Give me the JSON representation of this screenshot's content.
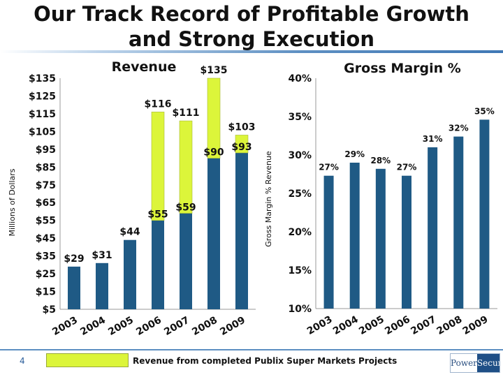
{
  "slide": {
    "title_line1": "Our Track Record of Profitable Growth",
    "title_line2": "and Strong Execution",
    "page_number": "4",
    "legend_label": "Revenue from completed Publix Super Markets Projects",
    "logo_left": "Power",
    "logo_right": "Secure"
  },
  "colors": {
    "base": "#1f5a85",
    "publix": "#dcf53a",
    "publix_border": "#a5b83a"
  },
  "chart_data": [
    {
      "type": "bar",
      "stacked": true,
      "title": "Revenue",
      "ylabel": "Millions of Dollars",
      "categories": [
        "2003",
        "2004",
        "2005",
        "2006",
        "2007",
        "2008",
        "2009"
      ],
      "series": [
        {
          "values": [
            29,
            31,
            44,
            55,
            59,
            90,
            93
          ]
        },
        {
          "name": "Revenue from completed Publix Super Markets Projects",
          "values": [
            0,
            0,
            0,
            61,
            52,
            45,
            10
          ]
        }
      ],
      "totals": [
        29,
        31,
        44,
        116,
        111,
        135,
        103
      ],
      "labels_total": [
        "$29",
        "$31",
        "$44",
        "$116",
        "$111",
        "$135",
        "$103"
      ],
      "labels_base": [
        "",
        "",
        "",
        "$55",
        "$59",
        "$90",
        "$93"
      ],
      "ylim": [
        5,
        135
      ],
      "yticks": [
        "$5",
        "$15",
        "$25",
        "$35",
        "$45",
        "$55",
        "$65",
        "$75",
        "$85",
        "$95",
        "$105",
        "$115",
        "$125",
        "$135"
      ]
    },
    {
      "type": "bar",
      "title": "Gross Margin %",
      "ylabel": "Gross Margin % Revenue",
      "categories": [
        "2003",
        "2004",
        "2005",
        "2006",
        "2007",
        "2008",
        "2009"
      ],
      "values": [
        27.3,
        29,
        28.2,
        27.3,
        31,
        32.4,
        34.6
      ],
      "labels": [
        "27%",
        "29%",
        "28%",
        "27%",
        "31%",
        "32%",
        "35%"
      ],
      "ylim": [
        10,
        40
      ],
      "yticks": [
        "10%",
        "15%",
        "20%",
        "25%",
        "30%",
        "35%",
        "40%"
      ]
    }
  ]
}
